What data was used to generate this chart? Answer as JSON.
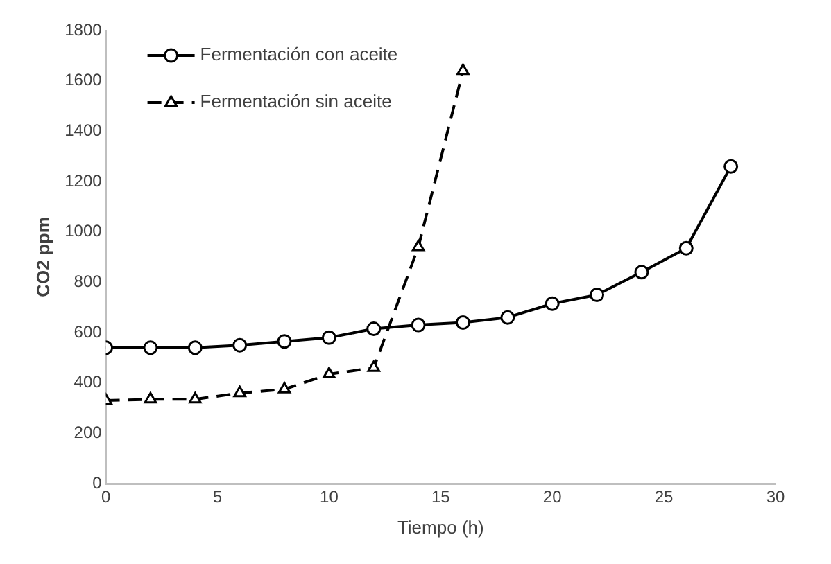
{
  "chart_data": {
    "type": "line",
    "xlabel": "Tiempo (h)",
    "ylabel": "CO2 ppm",
    "xlim": [
      0,
      30
    ],
    "xticks": [
      0,
      5,
      10,
      15,
      20,
      25,
      30
    ],
    "ylim": [
      0,
      1800
    ],
    "yticks": [
      0,
      200,
      400,
      600,
      800,
      1000,
      1200,
      1400,
      1600,
      1800
    ],
    "grid": false,
    "legend": "top left",
    "series": [
      {
        "name": "Fermentación con aceite",
        "color": "#000000",
        "marker": "circle",
        "line_style": "solid",
        "x": [
          0,
          2,
          4,
          6,
          8,
          10,
          12,
          14,
          16,
          18,
          20,
          22,
          24,
          26,
          28
        ],
        "values": [
          540,
          540,
          540,
          550,
          565,
          580,
          615,
          630,
          640,
          660,
          715,
          750,
          840,
          935,
          1260
        ]
      },
      {
        "name": "Fermentación sin aceite",
        "color": "#000000",
        "marker": "triangle",
        "line_style": "dashed",
        "x": [
          0,
          2,
          4,
          6,
          8,
          10,
          12,
          14,
          16
        ],
        "values": [
          330,
          335,
          335,
          360,
          375,
          435,
          460,
          940,
          1640
        ]
      }
    ]
  }
}
